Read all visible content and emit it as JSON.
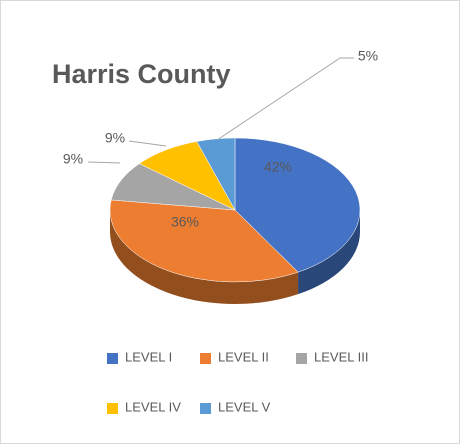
{
  "chart_data": {
    "type": "pie3d",
    "title": "Harris County",
    "categories": [
      "LEVEL I",
      "LEVEL II",
      "LEVEL III",
      "LEVEL IV",
      "LEVEL V"
    ],
    "values": [
      42,
      36,
      9,
      9,
      5
    ],
    "value_labels": [
      "42%",
      "36%",
      "9%",
      "9%",
      "5%"
    ],
    "colors": [
      "#4472c4",
      "#ed7d31",
      "#a5a5a5",
      "#ffc000",
      "#5b9bd5"
    ]
  }
}
